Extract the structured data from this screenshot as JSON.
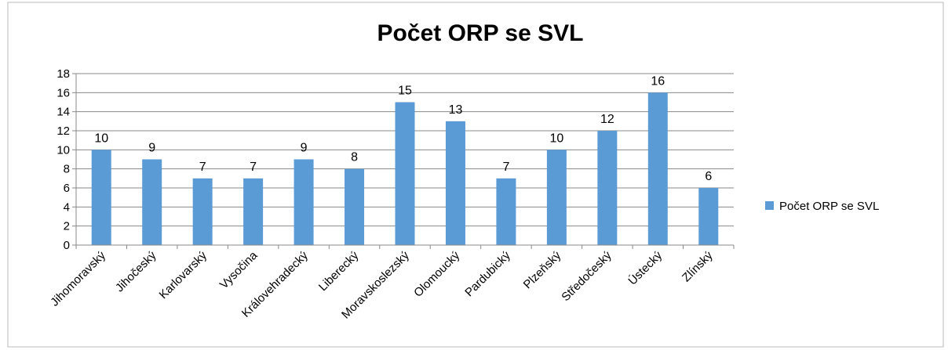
{
  "chart_data": {
    "type": "bar",
    "title": "Počet ORP se SVL",
    "categories": [
      "Jihomoravský",
      "Jihočeský",
      "Karlovarský",
      "Vysočina",
      "Královehradecký",
      "Liberecký",
      "Moravskoslezský",
      "Olomoucký",
      "Pardubický",
      "Plzeňský",
      "Středočeský",
      "Ústecký",
      "Zlínský"
    ],
    "series": [
      {
        "name": "Počet ORP se SVL",
        "color": "#5b9bd5",
        "values": [
          10,
          9,
          7,
          7,
          9,
          8,
          15,
          13,
          7,
          10,
          12,
          16,
          6
        ]
      }
    ],
    "ylim": [
      0,
      18
    ],
    "yticks": [
      0,
      2,
      4,
      6,
      8,
      10,
      12,
      14,
      16,
      18
    ],
    "grid": true,
    "legend": "right",
    "data_labels": true
  }
}
